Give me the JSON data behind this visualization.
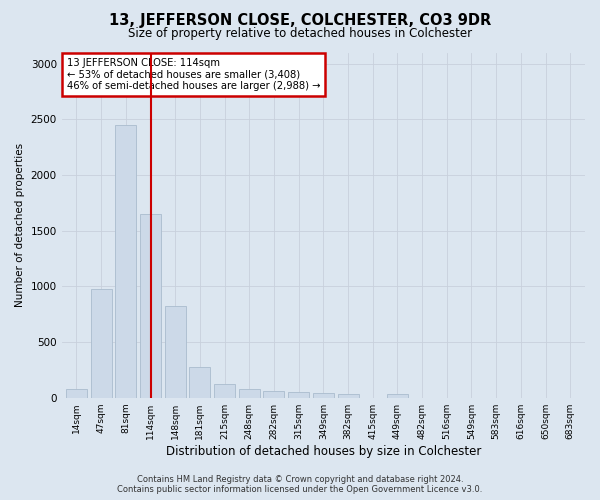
{
  "title": "13, JEFFERSON CLOSE, COLCHESTER, CO3 9DR",
  "subtitle": "Size of property relative to detached houses in Colchester",
  "xlabel": "Distribution of detached houses by size in Colchester",
  "ylabel": "Number of detached properties",
  "categories": [
    "14sqm",
    "47sqm",
    "81sqm",
    "114sqm",
    "148sqm",
    "181sqm",
    "215sqm",
    "248sqm",
    "282sqm",
    "315sqm",
    "349sqm",
    "382sqm",
    "415sqm",
    "449sqm",
    "482sqm",
    "516sqm",
    "549sqm",
    "583sqm",
    "616sqm",
    "650sqm",
    "683sqm"
  ],
  "values": [
    75,
    975,
    2450,
    1650,
    825,
    275,
    120,
    75,
    60,
    50,
    40,
    30,
    0,
    30,
    0,
    0,
    0,
    0,
    0,
    0,
    0
  ],
  "bar_color": "#ccd9e8",
  "bar_edgecolor": "#aabcce",
  "redline_index": 3,
  "annotation_line1": "13 JEFFERSON CLOSE: 114sqm",
  "annotation_line2": "← 53% of detached houses are smaller (3,408)",
  "annotation_line3": "46% of semi-detached houses are larger (2,988) →",
  "annotation_box_facecolor": "#ffffff",
  "annotation_box_edgecolor": "#cc0000",
  "redline_color": "#cc0000",
  "grid_color": "#c8d0dc",
  "background_color": "#dce6f0",
  "ylim": [
    0,
    3100
  ],
  "yticks": [
    0,
    500,
    1000,
    1500,
    2000,
    2500,
    3000
  ],
  "footer_line1": "Contains HM Land Registry data © Crown copyright and database right 2024.",
  "footer_line2": "Contains public sector information licensed under the Open Government Licence v3.0."
}
